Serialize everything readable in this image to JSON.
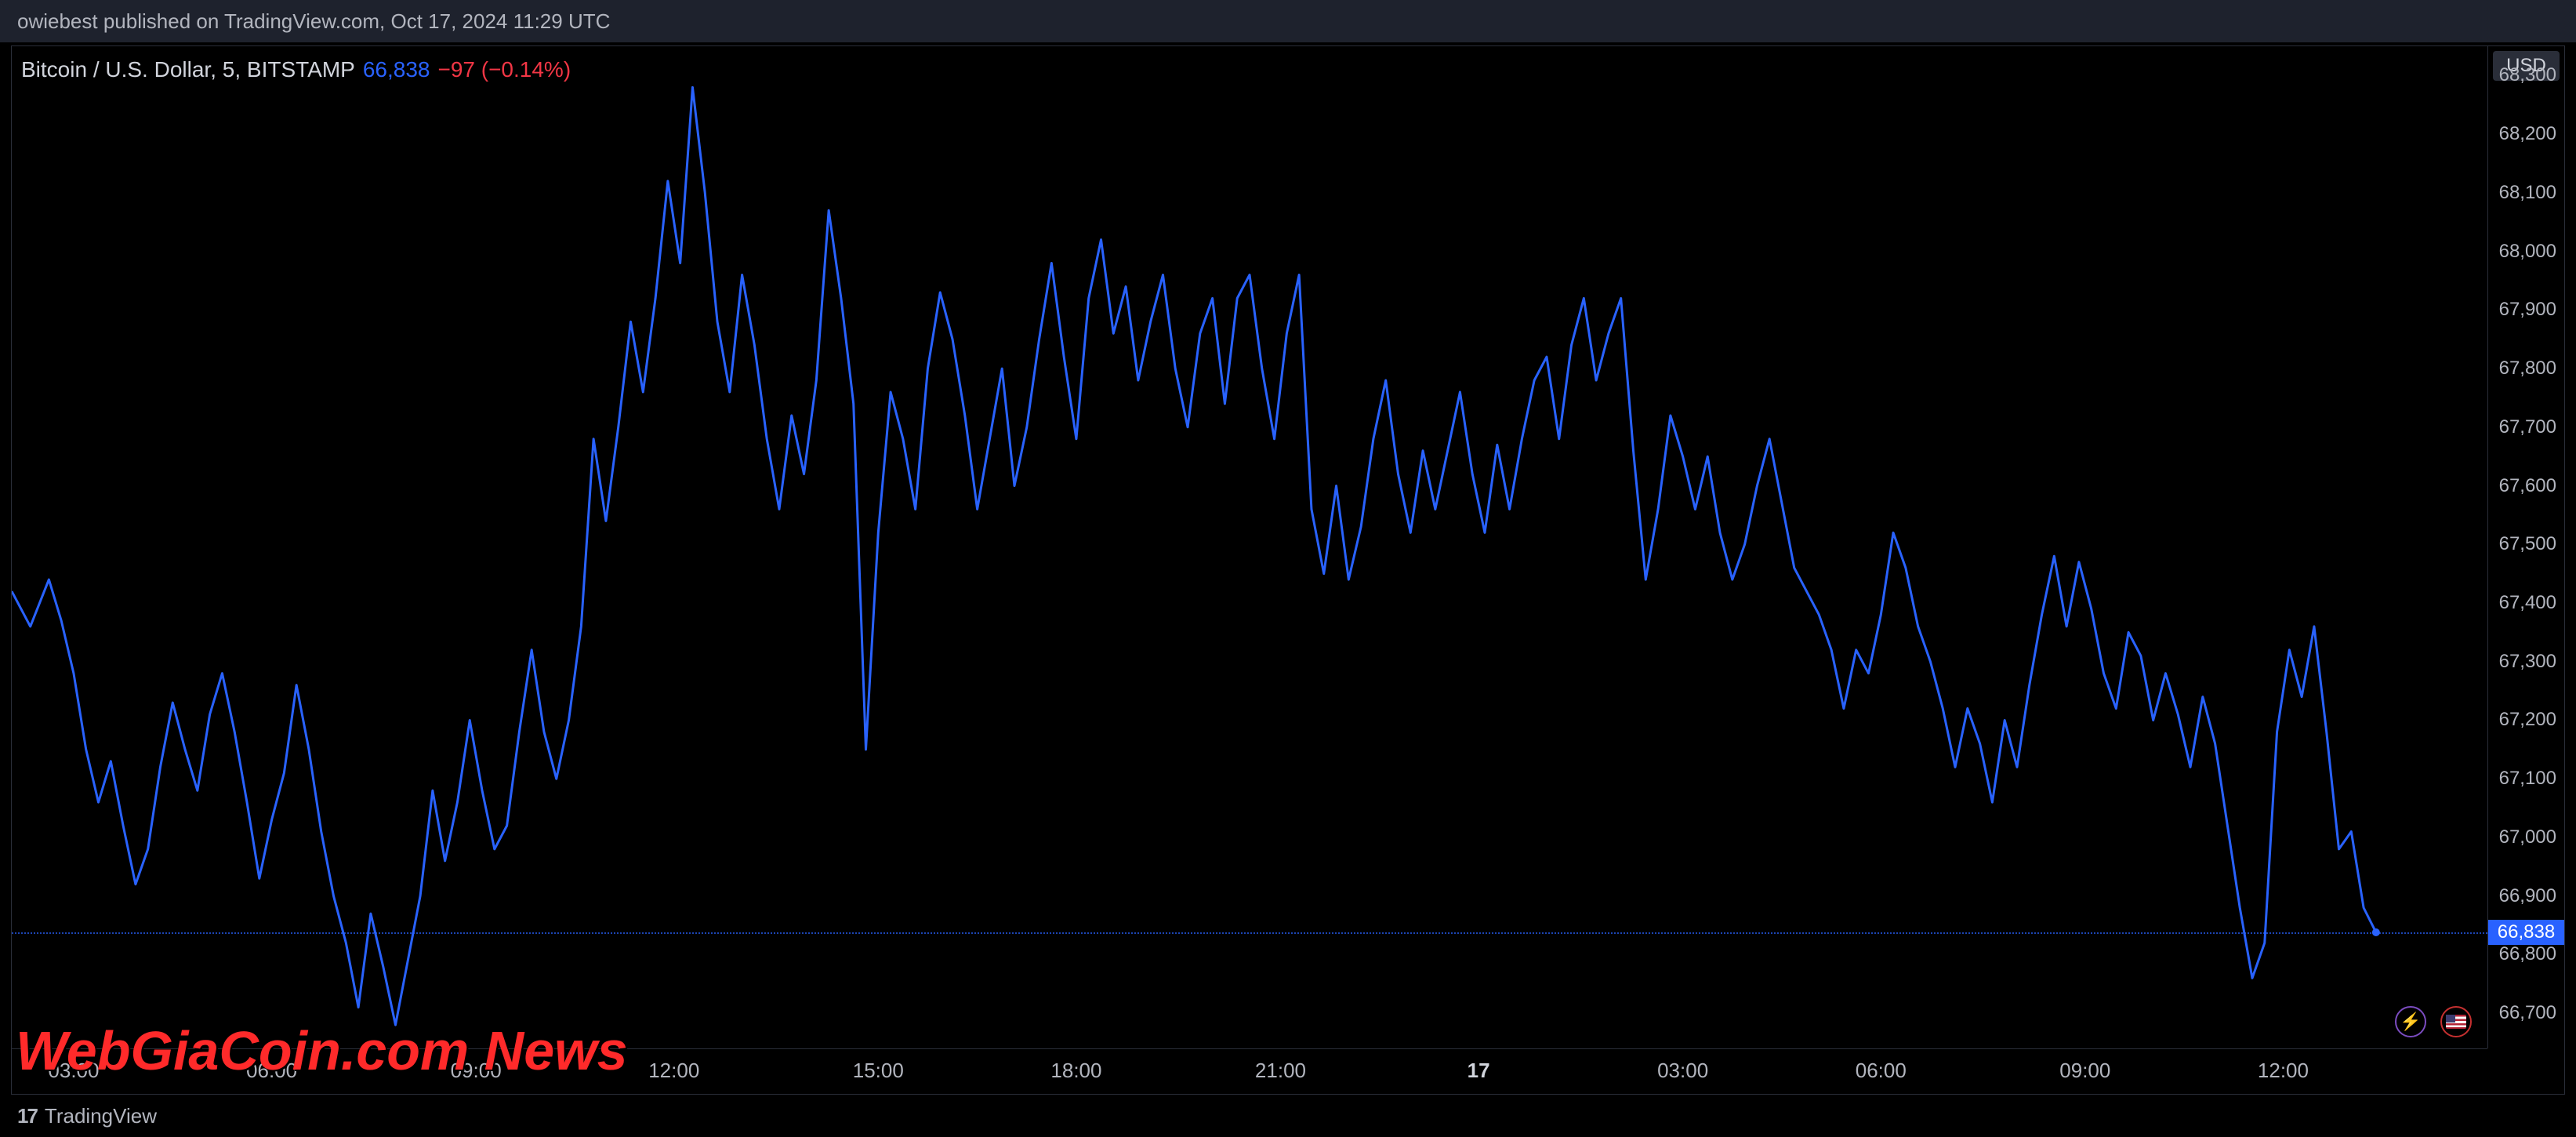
{
  "publish_bar": {
    "text": "owiebest published on TradingView.com, Oct 17, 2024 11:29 UTC"
  },
  "legend": {
    "symbol": "Bitcoin / U.S. Dollar, 5, BITSTAMP",
    "last": "66,838",
    "change": "−97 (−0.14%)"
  },
  "currency_badge": "USD",
  "footer_brand": "TradingView",
  "watermark": "WebGiaCoin.com News",
  "chart": {
    "type": "line",
    "line_color": "#2962ff",
    "line_width": 3,
    "background_color": "#000000",
    "axis_text_color": "#b2b5be",
    "border_color": "#2a2e39",
    "last_price_color": "#2962ff",
    "ylim": [
      66640,
      68350
    ],
    "ytick_positions": [
      66700,
      66800,
      66838,
      66900,
      67000,
      67100,
      67200,
      67300,
      67400,
      67500,
      67600,
      67700,
      67800,
      67900,
      68000,
      68100,
      68200,
      68300
    ],
    "ytick_labels": [
      "66,700",
      "66,800",
      "66,838",
      "66,900",
      "67,000",
      "67,100",
      "67,200",
      "67,300",
      "67,400",
      "67,500",
      "67,600",
      "67,700",
      "67,800",
      "67,900",
      "68,000",
      "68,100",
      "68,200",
      "68,300"
    ],
    "last_price_value": 66838,
    "xlim": [
      0,
      400
    ],
    "xtick_positions": [
      10,
      42,
      75,
      107,
      140,
      172,
      205,
      237,
      270,
      302,
      335,
      367,
      400
    ],
    "xtick_labels": [
      "03:00",
      "06:00",
      "09:00",
      "12:00",
      "15:00",
      "18:00",
      "21:00",
      "17",
      "03:00",
      "06:00",
      "09:00",
      "12:00",
      ""
    ],
    "xtick_bold_index": 7,
    "series": [
      [
        0,
        67420
      ],
      [
        3,
        67360
      ],
      [
        6,
        67440
      ],
      [
        8,
        67370
      ],
      [
        10,
        67280
      ],
      [
        12,
        67150
      ],
      [
        14,
        67060
      ],
      [
        16,
        67130
      ],
      [
        18,
        67020
      ],
      [
        20,
        66920
      ],
      [
        22,
        66980
      ],
      [
        24,
        67120
      ],
      [
        26,
        67230
      ],
      [
        28,
        67150
      ],
      [
        30,
        67080
      ],
      [
        32,
        67210
      ],
      [
        34,
        67280
      ],
      [
        36,
        67180
      ],
      [
        38,
        67060
      ],
      [
        40,
        66930
      ],
      [
        42,
        67030
      ],
      [
        44,
        67110
      ],
      [
        46,
        67260
      ],
      [
        48,
        67150
      ],
      [
        50,
        67010
      ],
      [
        52,
        66900
      ],
      [
        54,
        66820
      ],
      [
        56,
        66710
      ],
      [
        58,
        66870
      ],
      [
        60,
        66780
      ],
      [
        62,
        66680
      ],
      [
        64,
        66790
      ],
      [
        66,
        66900
      ],
      [
        68,
        67080
      ],
      [
        70,
        66960
      ],
      [
        72,
        67060
      ],
      [
        74,
        67200
      ],
      [
        76,
        67080
      ],
      [
        78,
        66980
      ],
      [
        80,
        67020
      ],
      [
        82,
        67180
      ],
      [
        84,
        67320
      ],
      [
        86,
        67180
      ],
      [
        88,
        67100
      ],
      [
        90,
        67200
      ],
      [
        92,
        67360
      ],
      [
        94,
        67680
      ],
      [
        96,
        67540
      ],
      [
        98,
        67700
      ],
      [
        100,
        67880
      ],
      [
        102,
        67760
      ],
      [
        104,
        67920
      ],
      [
        106,
        68120
      ],
      [
        108,
        67980
      ],
      [
        110,
        68280
      ],
      [
        112,
        68100
      ],
      [
        114,
        67880
      ],
      [
        116,
        67760
      ],
      [
        118,
        67960
      ],
      [
        120,
        67840
      ],
      [
        122,
        67680
      ],
      [
        124,
        67560
      ],
      [
        126,
        67720
      ],
      [
        128,
        67620
      ],
      [
        130,
        67780
      ],
      [
        132,
        68070
      ],
      [
        134,
        67920
      ],
      [
        136,
        67740
      ],
      [
        138,
        67150
      ],
      [
        140,
        67520
      ],
      [
        142,
        67760
      ],
      [
        144,
        67680
      ],
      [
        146,
        67560
      ],
      [
        148,
        67800
      ],
      [
        150,
        67930
      ],
      [
        152,
        67850
      ],
      [
        154,
        67720
      ],
      [
        156,
        67560
      ],
      [
        158,
        67680
      ],
      [
        160,
        67800
      ],
      [
        162,
        67600
      ],
      [
        164,
        67700
      ],
      [
        166,
        67850
      ],
      [
        168,
        67980
      ],
      [
        170,
        67820
      ],
      [
        172,
        67680
      ],
      [
        174,
        67920
      ],
      [
        176,
        68020
      ],
      [
        178,
        67860
      ],
      [
        180,
        67940
      ],
      [
        182,
        67780
      ],
      [
        184,
        67880
      ],
      [
        186,
        67960
      ],
      [
        188,
        67800
      ],
      [
        190,
        67700
      ],
      [
        192,
        67860
      ],
      [
        194,
        67920
      ],
      [
        196,
        67740
      ],
      [
        198,
        67920
      ],
      [
        200,
        67960
      ],
      [
        202,
        67800
      ],
      [
        204,
        67680
      ],
      [
        206,
        67860
      ],
      [
        208,
        67960
      ],
      [
        210,
        67560
      ],
      [
        212,
        67450
      ],
      [
        214,
        67600
      ],
      [
        216,
        67440
      ],
      [
        218,
        67530
      ],
      [
        220,
        67680
      ],
      [
        222,
        67780
      ],
      [
        224,
        67620
      ],
      [
        226,
        67520
      ],
      [
        228,
        67660
      ],
      [
        230,
        67560
      ],
      [
        232,
        67660
      ],
      [
        234,
        67760
      ],
      [
        236,
        67620
      ],
      [
        238,
        67520
      ],
      [
        240,
        67670
      ],
      [
        242,
        67560
      ],
      [
        244,
        67680
      ],
      [
        246,
        67780
      ],
      [
        248,
        67820
      ],
      [
        250,
        67680
      ],
      [
        252,
        67840
      ],
      [
        254,
        67920
      ],
      [
        256,
        67780
      ],
      [
        258,
        67860
      ],
      [
        260,
        67920
      ],
      [
        262,
        67660
      ],
      [
        264,
        67440
      ],
      [
        266,
        67560
      ],
      [
        268,
        67720
      ],
      [
        270,
        67650
      ],
      [
        272,
        67560
      ],
      [
        274,
        67650
      ],
      [
        276,
        67520
      ],
      [
        278,
        67440
      ],
      [
        280,
        67500
      ],
      [
        282,
        67600
      ],
      [
        284,
        67680
      ],
      [
        286,
        67570
      ],
      [
        288,
        67460
      ],
      [
        290,
        67420
      ],
      [
        292,
        67380
      ],
      [
        294,
        67320
      ],
      [
        296,
        67220
      ],
      [
        298,
        67320
      ],
      [
        300,
        67280
      ],
      [
        302,
        67380
      ],
      [
        304,
        67520
      ],
      [
        306,
        67460
      ],
      [
        308,
        67360
      ],
      [
        310,
        67300
      ],
      [
        312,
        67220
      ],
      [
        314,
        67120
      ],
      [
        316,
        67220
      ],
      [
        318,
        67160
      ],
      [
        320,
        67060
      ],
      [
        322,
        67200
      ],
      [
        324,
        67120
      ],
      [
        326,
        67260
      ],
      [
        328,
        67380
      ],
      [
        330,
        67480
      ],
      [
        332,
        67360
      ],
      [
        334,
        67470
      ],
      [
        336,
        67390
      ],
      [
        338,
        67280
      ],
      [
        340,
        67220
      ],
      [
        342,
        67350
      ],
      [
        344,
        67310
      ],
      [
        346,
        67200
      ],
      [
        348,
        67280
      ],
      [
        350,
        67210
      ],
      [
        352,
        67120
      ],
      [
        354,
        67240
      ],
      [
        356,
        67160
      ],
      [
        358,
        67020
      ],
      [
        360,
        66880
      ],
      [
        362,
        66760
      ],
      [
        364,
        66820
      ],
      [
        366,
        67180
      ],
      [
        368,
        67320
      ],
      [
        370,
        67240
      ],
      [
        372,
        67360
      ],
      [
        374,
        67180
      ],
      [
        376,
        66980
      ],
      [
        378,
        67010
      ],
      [
        380,
        66880
      ],
      [
        382,
        66838
      ]
    ],
    "end_dot_radius": 5
  }
}
